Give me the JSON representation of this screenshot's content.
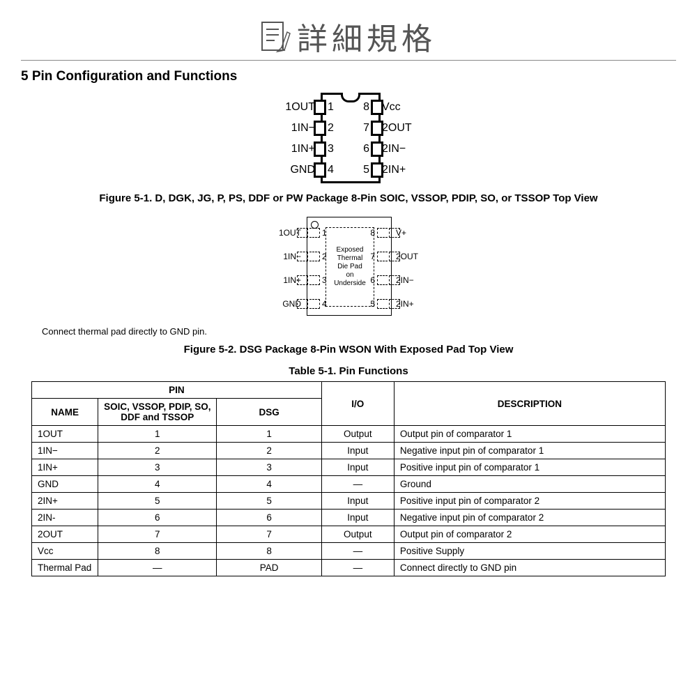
{
  "header": {
    "title": "詳細規格"
  },
  "section_title": "5 Pin Configuration and Functions",
  "fig1": {
    "caption": "Figure 5-1. D, DGK, JG, P, PS, DDF or PW Package 8-Pin SOIC, VSSOP, PDIP, SO, or TSSOP Top View",
    "left_labels": [
      "1OUT",
      "1IN−",
      "1IN+",
      "GND"
    ],
    "right_labels": [
      "Vᴄᴄ",
      "2OUT",
      "2IN−",
      "2IN+"
    ],
    "left_nums": [
      "1",
      "2",
      "3",
      "4"
    ],
    "right_nums": [
      "8",
      "7",
      "6",
      "5"
    ]
  },
  "fig2": {
    "caption": "Figure 5-2. DSG Package 8-Pin WSON With Exposed Pad Top View",
    "note": "Connect thermal pad directly to GND pin.",
    "diepad_text": "Exposed\nThermal\nDie Pad\non\nUnderside",
    "left_labels": [
      "1OUT",
      "1IN−",
      "1IN+",
      "GND"
    ],
    "right_labels": [
      "V+",
      "2OUT",
      "2IN−",
      "2IN+"
    ],
    "left_nums": [
      "1",
      "2",
      "3",
      "4"
    ],
    "right_nums": [
      "8",
      "7",
      "6",
      "5"
    ]
  },
  "table": {
    "caption": "Table 5-1. Pin Functions",
    "headers": {
      "pin_group": "PIN",
      "name": "NAME",
      "pkg1": "SOIC, VSSOP, PDIP, SO, DDF and TSSOP",
      "pkg2": "DSG",
      "io": "I/O",
      "desc": "DESCRIPTION"
    },
    "rows": [
      {
        "name": "1OUT",
        "p1": "1",
        "p2": "1",
        "io": "Output",
        "desc": "Output pin of comparator 1"
      },
      {
        "name": "1IN−",
        "p1": "2",
        "p2": "2",
        "io": "Input",
        "desc": "Negative input pin of comparator 1"
      },
      {
        "name": "1IN+",
        "p1": "3",
        "p2": "3",
        "io": "Input",
        "desc": "Positive input pin of comparator 1"
      },
      {
        "name": "GND",
        "p1": "4",
        "p2": "4",
        "io": "—",
        "desc": "Ground"
      },
      {
        "name": "2IN+",
        "p1": "5",
        "p2": "5",
        "io": "Input",
        "desc": "Positive input pin of comparator 2"
      },
      {
        "name": "2IN-",
        "p1": "6",
        "p2": "6",
        "io": "Input",
        "desc": "Negative input pin of comparator 2"
      },
      {
        "name": "2OUT",
        "p1": "7",
        "p2": "7",
        "io": "Output",
        "desc": "Output pin of comparator 2"
      },
      {
        "name": "Vᴄᴄ",
        "p1": "8",
        "p2": "8",
        "io": "—",
        "desc": "Positive Supply"
      },
      {
        "name": "Thermal Pad",
        "p1": "—",
        "p2": "PAD",
        "io": "—",
        "desc": "Connect directly to GND pin"
      }
    ]
  }
}
